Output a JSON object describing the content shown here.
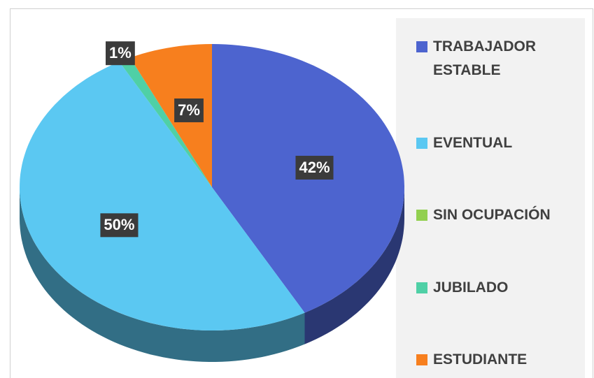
{
  "chart_data": {
    "type": "pie3d",
    "categories": [
      "TRABAJADOR ESTABLE",
      "EVENTUAL",
      "SIN OCUPACIÓN",
      "JUBILADO",
      "ESTUDIANTE"
    ],
    "values": [
      42,
      50,
      0,
      1,
      7
    ],
    "value_labels": [
      "42%",
      "50%",
      null,
      "1%",
      "7%"
    ],
    "colors": [
      "#4d64cf",
      "#5bc8f2",
      "#92d050",
      "#4fd0a6",
      "#f77f1e"
    ],
    "legend": "right"
  }
}
